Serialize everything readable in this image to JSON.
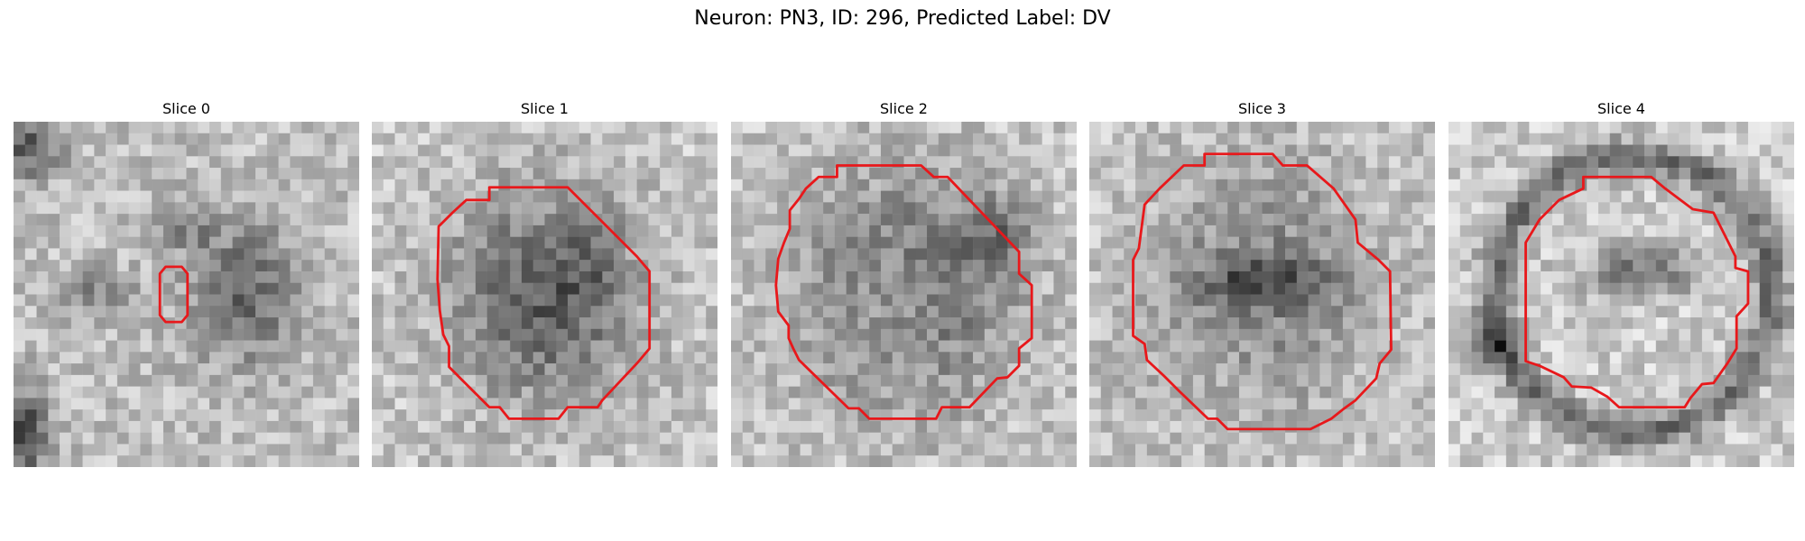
{
  "figure": {
    "title": "Neuron: PN3, ID: 296, Predicted Label: DV"
  },
  "contour_color": "#e8181b",
  "panels": [
    {
      "title": "Slice 0",
      "contour": "small-capsule"
    },
    {
      "title": "Slice 1",
      "contour": "octagon"
    },
    {
      "title": "Slice 2",
      "contour": "octagon"
    },
    {
      "title": "Slice 3",
      "contour": "octagon"
    },
    {
      "title": "Slice 4",
      "contour": "octagon"
    }
  ]
}
